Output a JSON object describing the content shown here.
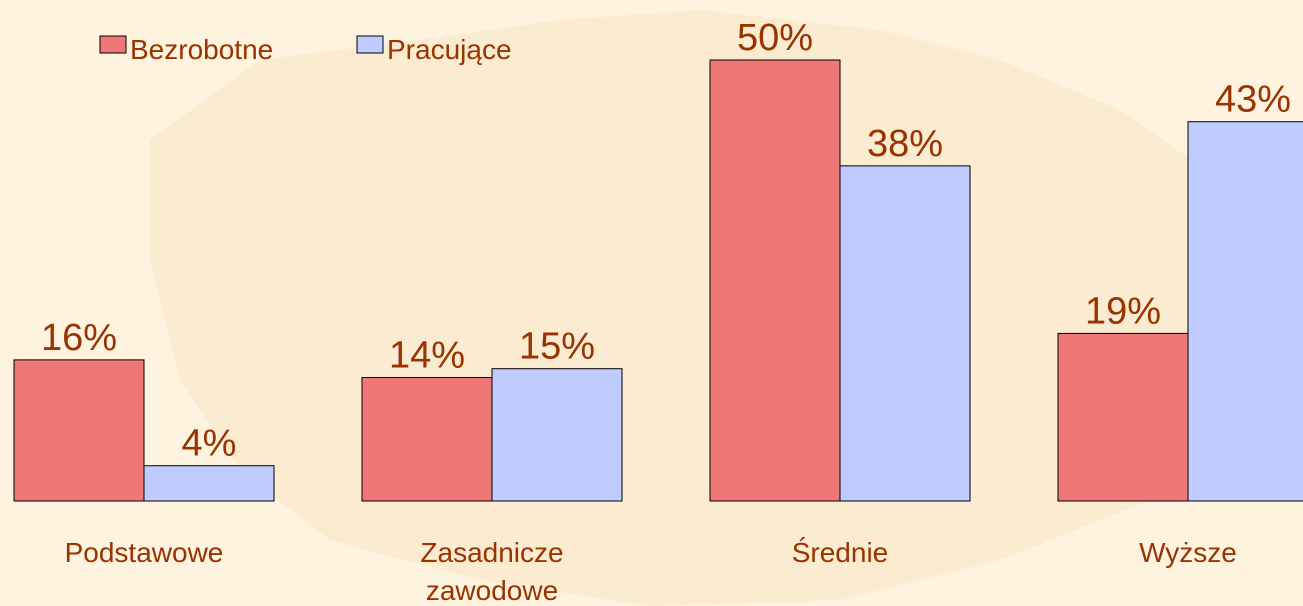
{
  "chart_data": {
    "type": "bar",
    "categories": [
      "Podstawowe",
      "Zasadnicze\nzawodowe",
      "Średnie",
      "Wyższe"
    ],
    "series": [
      {
        "name": "Bezrobotne",
        "color": "#ef7777",
        "values": [
          16,
          14,
          50,
          19
        ],
        "value_labels": [
          "16%",
          "14%",
          "50%",
          "19%"
        ]
      },
      {
        "name": "Pracujące",
        "color": "#c0ccff",
        "values": [
          4,
          15,
          38,
          43
        ],
        "value_labels": [
          "4%",
          "15%",
          "38%",
          "43%"
        ]
      }
    ]
  }
}
